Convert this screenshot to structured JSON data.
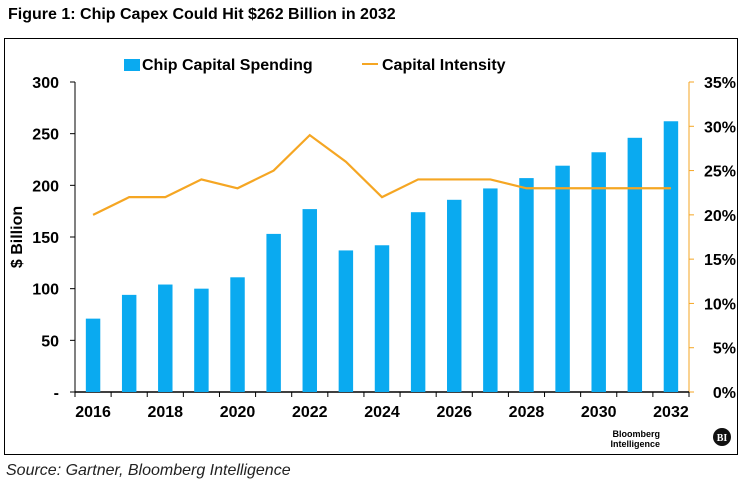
{
  "figure_title": "Figure 1: Chip Capex Could Hit $262 Billion in 2032",
  "source": "Source: Gartner, Bloomberg Intelligence",
  "logo": {
    "line1": "Bloomberg",
    "line2": "Intelligence",
    "badge": "BI"
  },
  "chart_data": {
    "type": "bar",
    "title": "",
    "ylabel": "$ Billion",
    "xlabel": "",
    "x": [
      2016,
      2017,
      2018,
      2019,
      2020,
      2021,
      2022,
      2023,
      2024,
      2025,
      2026,
      2027,
      2028,
      2029,
      2030,
      2031,
      2032
    ],
    "x_tick_labels": [
      "2016",
      "2018",
      "2020",
      "2022",
      "2024",
      "2026",
      "2028",
      "2030",
      "2032"
    ],
    "ylim": [
      0,
      300
    ],
    "y_tick_labels": [
      "-",
      "50",
      "100",
      "150",
      "200",
      "250",
      "300"
    ],
    "y2lim": [
      0,
      35
    ],
    "y2_tick_labels": [
      "0%",
      "5%",
      "10%",
      "15%",
      "20%",
      "25%",
      "30%",
      "35%"
    ],
    "legend_position": "top",
    "grid": false,
    "series": [
      {
        "name": "Chip Capital Spending",
        "type": "bar",
        "axis": "left",
        "color": "#0aaaf0",
        "values": [
          71,
          94,
          104,
          100,
          111,
          153,
          177,
          137,
          142,
          174,
          186,
          197,
          207,
          219,
          232,
          246,
          262
        ]
      },
      {
        "name": "Capital Intensity",
        "type": "line",
        "axis": "right",
        "color": "#f5a623",
        "values": [
          20,
          22,
          22,
          24,
          23,
          25,
          29,
          26,
          22,
          24,
          24,
          24,
          23,
          23,
          23,
          23,
          23
        ]
      }
    ]
  }
}
